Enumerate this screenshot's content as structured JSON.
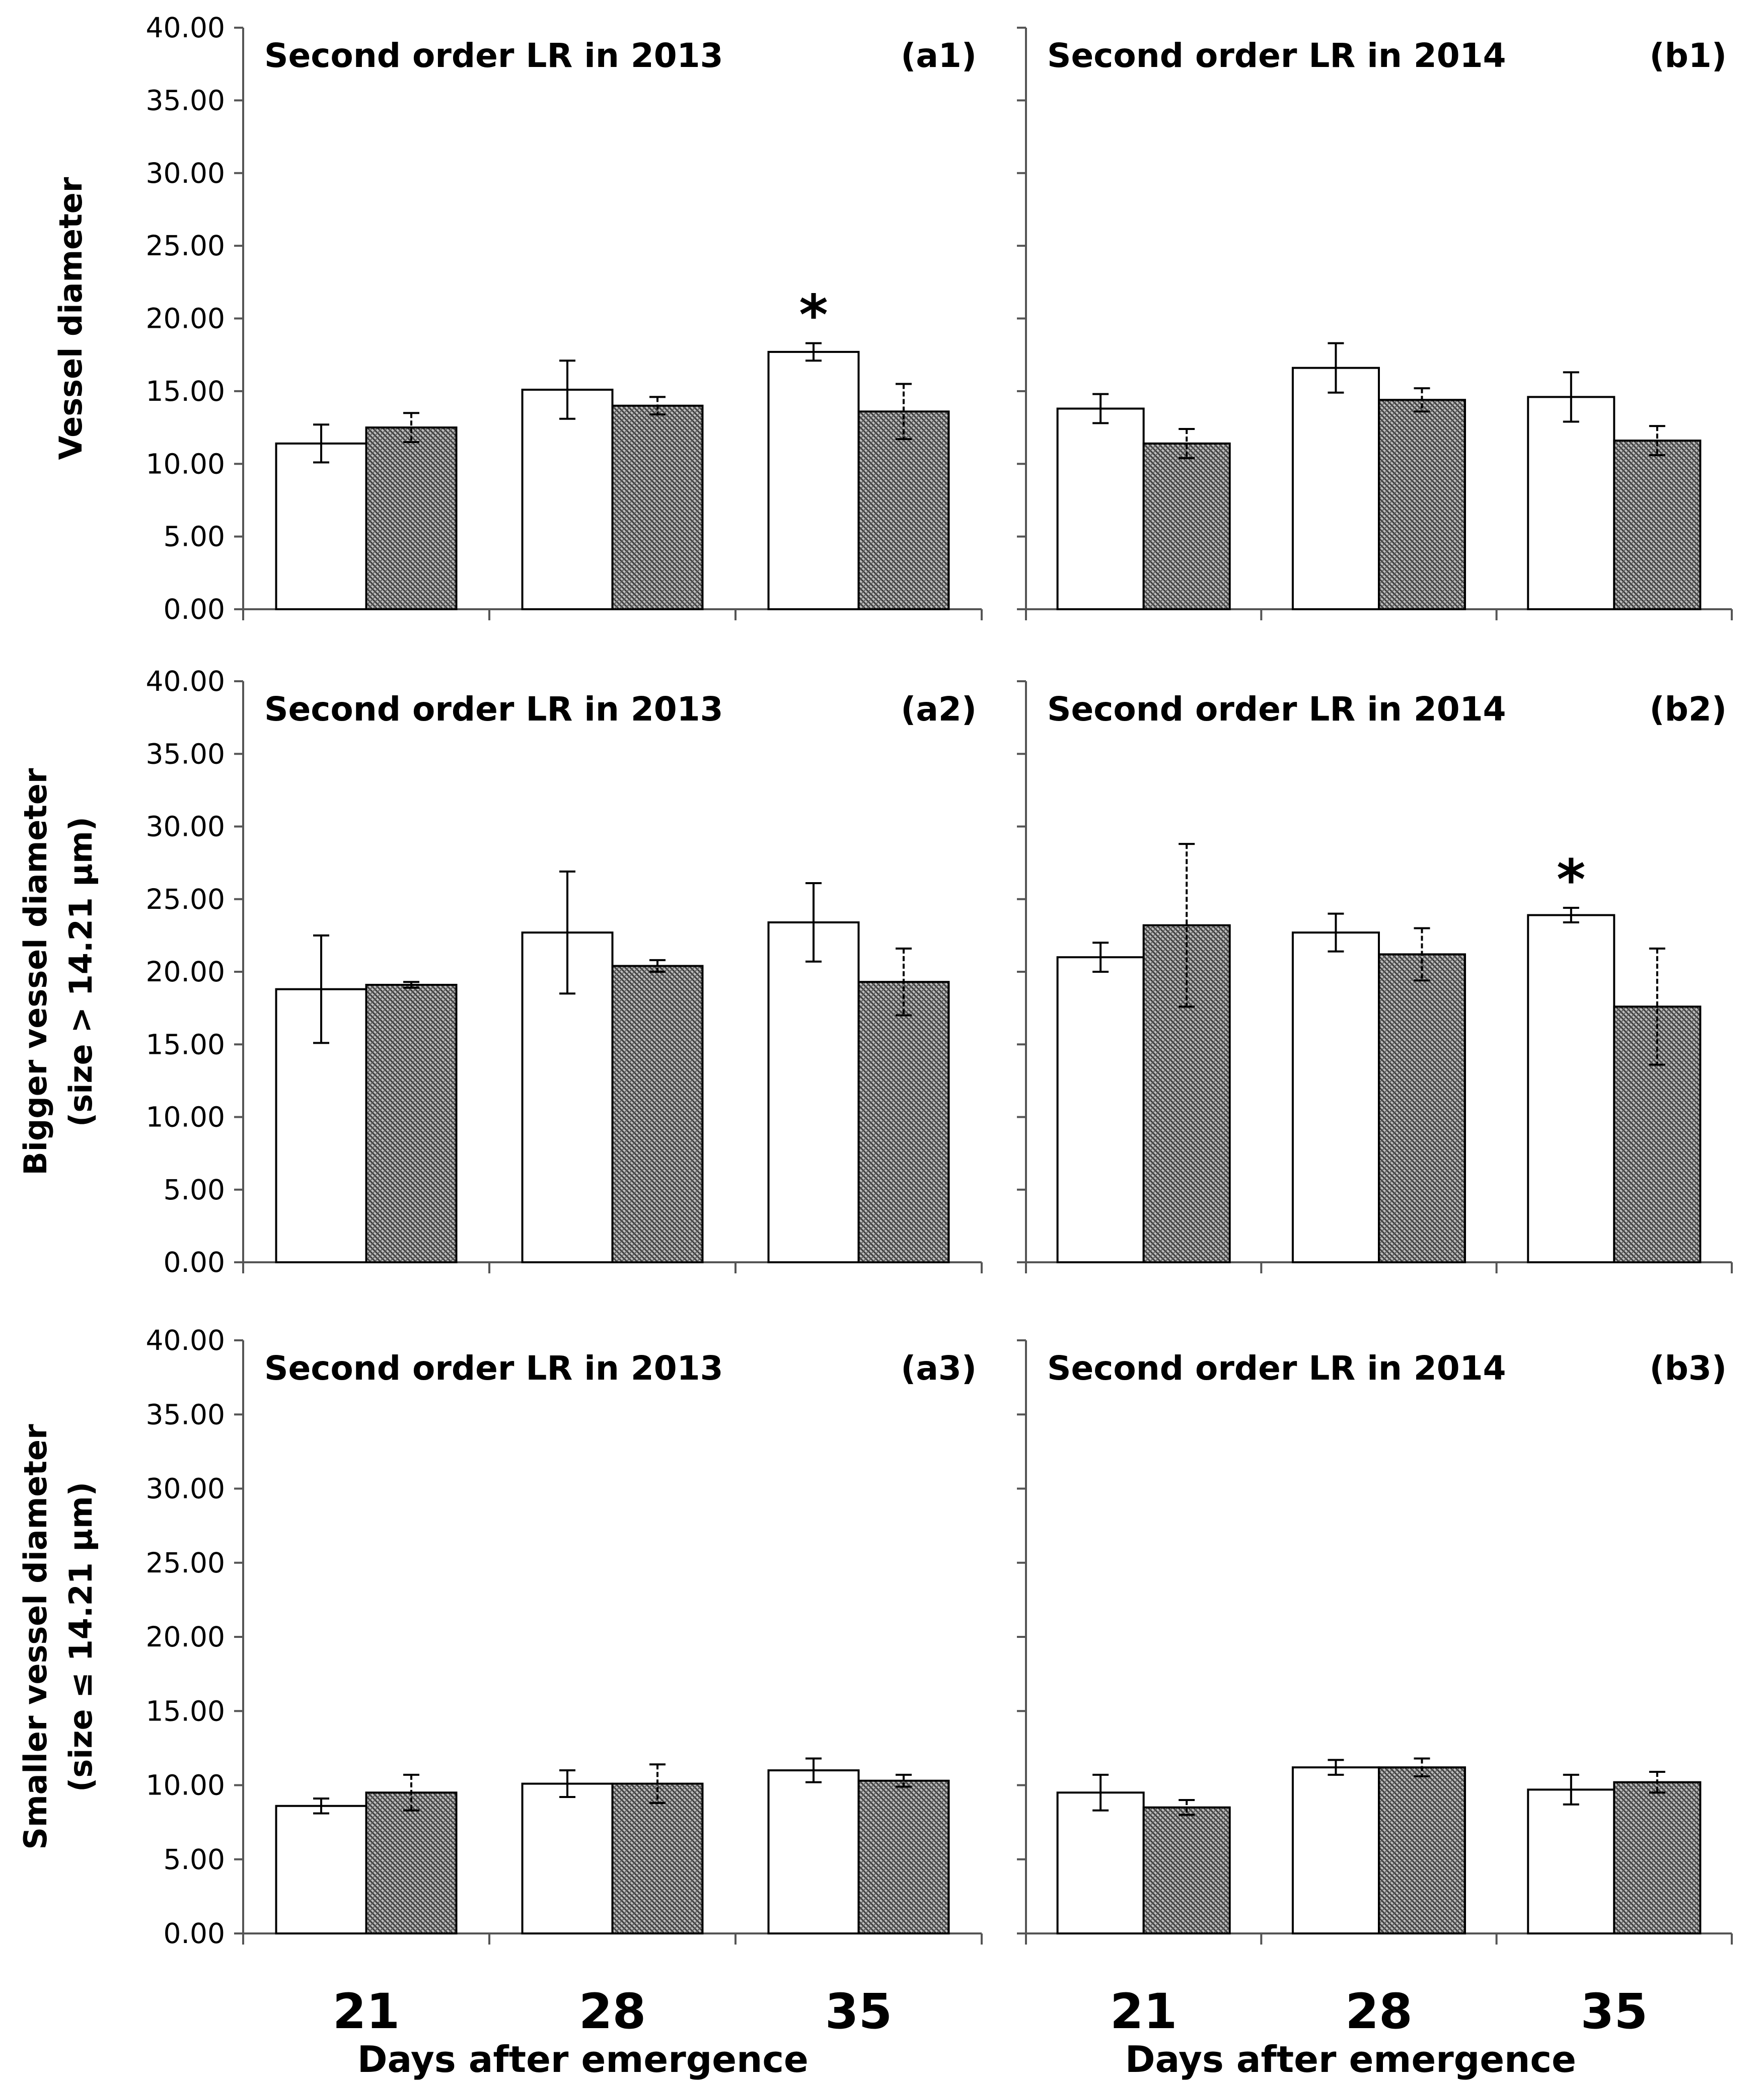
{
  "chart_data": [
    {
      "id": "a1",
      "type": "bar",
      "title": "Second order LR in 2013",
      "panel_label": "(a1)",
      "categories": [
        "21",
        "28",
        "35"
      ],
      "series": [
        {
          "name": "open",
          "values": [
            11.4,
            15.1,
            17.7
          ],
          "errors": [
            1.3,
            2.0,
            0.6
          ]
        },
        {
          "name": "hatched",
          "values": [
            12.5,
            14.0,
            13.6
          ],
          "errors": [
            1.0,
            0.6,
            1.9
          ]
        }
      ],
      "significance": [
        {
          "category": "35",
          "series": "open",
          "symbol": "*"
        }
      ],
      "ylim": [
        0,
        40
      ],
      "yticks": [
        "0.00",
        "5.00",
        "10.00",
        "15.00",
        "20.00",
        "25.00",
        "30.00",
        "35.00",
        "40.00"
      ],
      "ylabel": [
        "Vessel diameter"
      ]
    },
    {
      "id": "b1",
      "type": "bar",
      "title": "Second order LR in 2014",
      "panel_label": "(b1)",
      "categories": [
        "21",
        "28",
        "35"
      ],
      "series": [
        {
          "name": "open",
          "values": [
            13.8,
            16.6,
            14.6
          ],
          "errors": [
            1.0,
            1.7,
            1.7
          ]
        },
        {
          "name": "hatched",
          "values": [
            11.4,
            14.4,
            11.6
          ],
          "errors": [
            1.0,
            0.8,
            1.0
          ]
        }
      ],
      "significance": [],
      "ylim": [
        0,
        40
      ]
    },
    {
      "id": "a2",
      "type": "bar",
      "title": "Second order LR in 2013",
      "panel_label": "(a2)",
      "categories": [
        "21",
        "28",
        "35"
      ],
      "series": [
        {
          "name": "open",
          "values": [
            18.8,
            22.7,
            23.4
          ],
          "errors": [
            3.7,
            4.2,
            2.7
          ]
        },
        {
          "name": "hatched",
          "values": [
            19.1,
            20.4,
            19.3
          ],
          "errors": [
            0.2,
            0.4,
            2.3
          ]
        }
      ],
      "significance": [],
      "ylim": [
        0,
        40
      ],
      "yticks": [
        "0.00",
        "5.00",
        "10.00",
        "15.00",
        "20.00",
        "25.00",
        "30.00",
        "35.00",
        "40.00"
      ],
      "ylabel": [
        "Bigger vessel diameter",
        "(size > 14.21 μm)"
      ]
    },
    {
      "id": "b2",
      "type": "bar",
      "title": "Second order LR in 2014",
      "panel_label": "(b2)",
      "categories": [
        "21",
        "28",
        "35"
      ],
      "series": [
        {
          "name": "open",
          "values": [
            21.0,
            22.7,
            23.9
          ],
          "errors": [
            1.0,
            1.3,
            0.5
          ]
        },
        {
          "name": "hatched",
          "values": [
            23.2,
            21.2,
            17.6
          ],
          "errors": [
            5.6,
            1.8,
            4.0
          ]
        }
      ],
      "significance": [
        {
          "category": "35",
          "series": "open",
          "symbol": "*"
        }
      ],
      "ylim": [
        0,
        40
      ]
    },
    {
      "id": "a3",
      "type": "bar",
      "title": "Second order LR in 2013",
      "panel_label": "(a3)",
      "categories": [
        "21",
        "28",
        "35"
      ],
      "series": [
        {
          "name": "open",
          "values": [
            8.6,
            10.1,
            11.0
          ],
          "errors": [
            0.5,
            0.9,
            0.8
          ]
        },
        {
          "name": "hatched",
          "values": [
            9.5,
            10.1,
            10.3
          ],
          "errors": [
            1.2,
            1.3,
            0.4
          ]
        }
      ],
      "significance": [],
      "ylim": [
        0,
        40
      ],
      "yticks": [
        "0.00",
        "5.00",
        "10.00",
        "15.00",
        "20.00",
        "25.00",
        "30.00",
        "35.00",
        "40.00"
      ],
      "ylabel": [
        "Smaller vessel diameter",
        "(size ≤ 14.21 μm)"
      ],
      "xlabel": "Days after emergence",
      "show_categories": true
    },
    {
      "id": "b3",
      "type": "bar",
      "title": "Second order LR in 2014",
      "panel_label": "(b3)",
      "categories": [
        "21",
        "28",
        "35"
      ],
      "series": [
        {
          "name": "open",
          "values": [
            9.5,
            11.2,
            9.7
          ],
          "errors": [
            1.2,
            0.5,
            1.0
          ]
        },
        {
          "name": "hatched",
          "values": [
            8.5,
            11.2,
            10.2
          ],
          "errors": [
            0.5,
            0.6,
            0.7
          ]
        }
      ],
      "significance": [],
      "ylim": [
        0,
        40
      ],
      "xlabel": "Days after emergence",
      "show_categories": true
    }
  ],
  "colors": {
    "axis": "#555555",
    "bar_open": "#ffffff",
    "bar_hatched": "#6e6e6e",
    "stroke": "#000000"
  }
}
